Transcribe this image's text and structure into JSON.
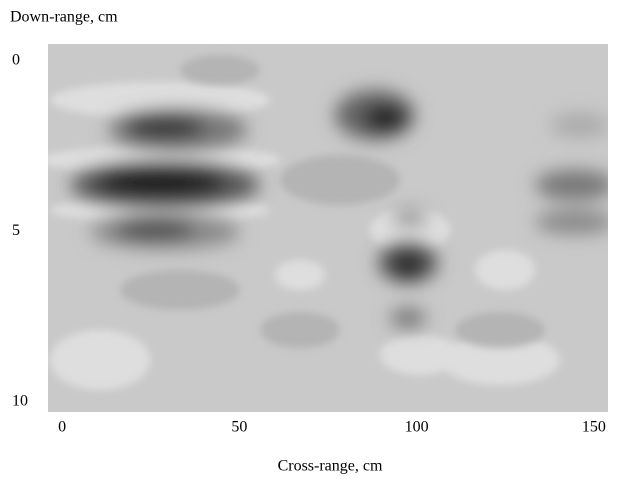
{
  "chart_data": {
    "type": "heatmap",
    "y_axis_label": "Down-range, cm",
    "x_axis_label": "Cross-range, cm",
    "xlim": [
      -4,
      154
    ],
    "xticks": [
      0,
      50,
      100,
      150
    ],
    "ylim": [
      -0.5,
      10.3
    ],
    "yticks": [
      0,
      5,
      10
    ],
    "y_inverted": true
  }
}
